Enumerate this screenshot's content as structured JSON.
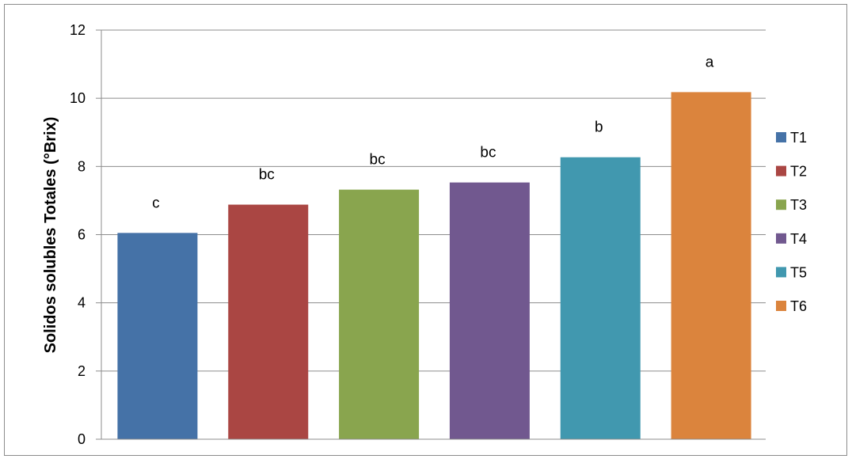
{
  "chart_data": {
    "type": "bar",
    "title": "",
    "xlabel": "",
    "ylabel": "Solidos solubles Totales (°Brix)",
    "ylim": [
      0,
      12
    ],
    "yticks": [
      0,
      2,
      4,
      6,
      8,
      10,
      12
    ],
    "ytick_labels": [
      "0",
      "2",
      "4",
      "6",
      "8",
      "10",
      "12"
    ],
    "grid": true,
    "legend_position": "right",
    "series": [
      {
        "name": "T1",
        "value": 6.05,
        "label": "c",
        "color": "#4572A7"
      },
      {
        "name": "T2",
        "value": 6.88,
        "label": "bc",
        "color": "#AA4643"
      },
      {
        "name": "T3",
        "value": 7.32,
        "label": "bc",
        "color": "#89A54E"
      },
      {
        "name": "T4",
        "value": 7.53,
        "label": "bc",
        "color": "#71588F"
      },
      {
        "name": "T5",
        "value": 8.27,
        "label": "b",
        "color": "#4198AF"
      },
      {
        "name": "T6",
        "value": 10.18,
        "label": "a",
        "color": "#DB843D"
      }
    ]
  }
}
